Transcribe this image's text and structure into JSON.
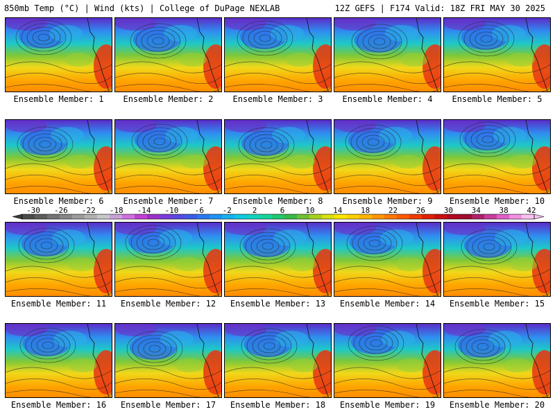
{
  "header": {
    "left_title": "850mb Temp (°C) | Wind (kts) | College of DuPage NEXLAB",
    "right_title": "12Z GEFS | F174 Valid: 18Z FRI MAY 30 2025"
  },
  "panels": [
    {
      "label": "Ensemble Member: 1"
    },
    {
      "label": "Ensemble Member: 2"
    },
    {
      "label": "Ensemble Member: 3"
    },
    {
      "label": "Ensemble Member: 4"
    },
    {
      "label": "Ensemble Member: 5"
    },
    {
      "label": "Ensemble Member: 6"
    },
    {
      "label": "Ensemble Member: 7"
    },
    {
      "label": "Ensemble Member: 8"
    },
    {
      "label": "Ensemble Member: 9"
    },
    {
      "label": "Ensemble Member: 10"
    },
    {
      "label": "Ensemble Member: 11"
    },
    {
      "label": "Ensemble Member: 12"
    },
    {
      "label": "Ensemble Member: 13"
    },
    {
      "label": "Ensemble Member: 14"
    },
    {
      "label": "Ensemble Member: 15"
    },
    {
      "label": "Ensemble Member: 16"
    },
    {
      "label": "Ensemble Member: 17"
    },
    {
      "label": "Ensemble Member: 18"
    },
    {
      "label": "Ensemble Member: 19"
    },
    {
      "label": "Ensemble Member: 20"
    }
  ],
  "colorbar": {
    "tick_labels": [
      "-30",
      "-26",
      "-22",
      "-18",
      "-14",
      "-10",
      "-6",
      "-2",
      "2",
      "6",
      "10",
      "14",
      "18",
      "22",
      "26",
      "30",
      "34",
      "38",
      "42"
    ],
    "colors": [
      "#4a4a4a",
      "#5e5e5e",
      "#727272",
      "#868686",
      "#9c9c9c",
      "#b2b2b2",
      "#c8c8c8",
      "#c8a0d8",
      "#d070e0",
      "#c040d0",
      "#9a30c8",
      "#7a3cd8",
      "#5a48e0",
      "#3a5ce8",
      "#2a78f0",
      "#1e94f4",
      "#18b0f0",
      "#10c8e0",
      "#10d4c0",
      "#18d49a",
      "#20c870",
      "#38b848",
      "#70c030",
      "#a8d020",
      "#d8e010",
      "#ffe600",
      "#ffd000",
      "#ffb400",
      "#ff9600",
      "#ff7800",
      "#ff5a00",
      "#f03c00",
      "#e02000",
      "#c81010",
      "#b00a1e",
      "#a00c30",
      "#b0206a",
      "#c83c9a",
      "#e060c8",
      "#f090e0",
      "#f8c0f0"
    ]
  }
}
